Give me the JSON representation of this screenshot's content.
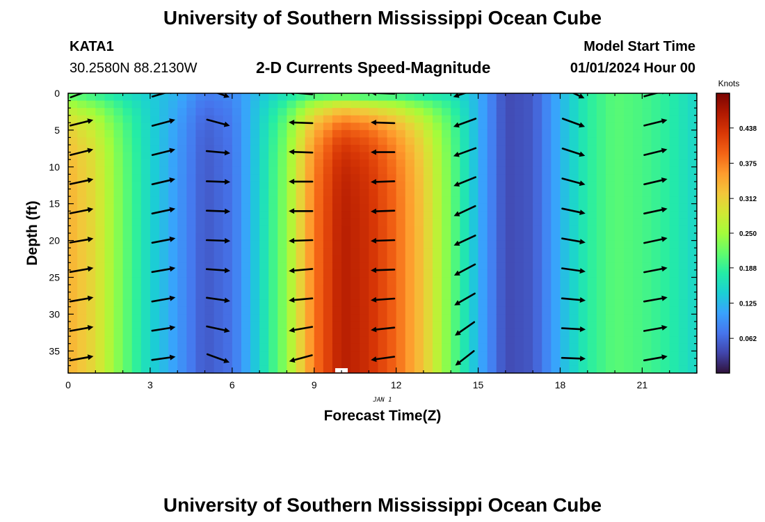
{
  "header": {
    "title": "University of Southern Mississippi Ocean Cube",
    "station": "KATA1",
    "coords": "30.2580N  88.2130W",
    "chart_title": "2-D Currents Speed-Magnitude",
    "model_label": "Model Start Time",
    "model_time": "01/01/2024 Hour 00"
  },
  "footer": {
    "title": "University of Southern Mississippi Ocean Cube"
  },
  "colors": {
    "arrow": "#000000",
    "turbo_stops": [
      "#30123b",
      "#4145ab",
      "#4675ed",
      "#39a2fc",
      "#1bcfd4",
      "#24eca6",
      "#61fc6c",
      "#a4fc3b",
      "#d1e834",
      "#f3c63a",
      "#fe9b2d",
      "#f36315",
      "#d93806",
      "#b11901",
      "#7a0402"
    ]
  },
  "chart_data": {
    "type": "heatmap",
    "title": "2-D Currents Speed-Magnitude",
    "xlabel": "Forecast Time(Z)",
    "ylabel": "Depth (ft)",
    "date_label": "JAN 1",
    "xlim": [
      0,
      23
    ],
    "ylim": [
      0,
      38
    ],
    "x_ticks": [
      0,
      3,
      6,
      9,
      12,
      15,
      18,
      21
    ],
    "y_ticks": [
      0,
      5,
      10,
      15,
      20,
      25,
      30,
      35
    ],
    "colorbar": {
      "label": "Knots",
      "min": 0.0,
      "max": 0.5,
      "ticks": [
        "0.062",
        "0.125",
        "0.188",
        "0.250",
        "0.312",
        "0.375",
        "0.438"
      ],
      "tick_values": [
        0.062,
        0.125,
        0.188,
        0.25,
        0.312,
        0.375,
        0.438
      ]
    },
    "hours": [
      0,
      1,
      2,
      3,
      4,
      5,
      6,
      7,
      8,
      9,
      10,
      11,
      12,
      13,
      14,
      15,
      16,
      17,
      18,
      19,
      20,
      21,
      22,
      23
    ],
    "hourly_speed": [
      0.34,
      0.3,
      0.22,
      0.15,
      0.1,
      0.05,
      0.07,
      0.15,
      0.24,
      0.38,
      0.46,
      0.44,
      0.39,
      0.32,
      0.22,
      0.12,
      0.04,
      0.05,
      0.12,
      0.18,
      0.21,
      0.2,
      0.18,
      0.15
    ],
    "hourly_surface_speed": [
      0.2,
      0.18,
      0.16,
      0.14,
      0.12,
      0.08,
      0.09,
      0.13,
      0.16,
      0.18,
      0.18,
      0.17,
      0.17,
      0.16,
      0.16,
      0.12,
      0.04,
      0.05,
      0.12,
      0.18,
      0.21,
      0.2,
      0.18,
      0.15
    ],
    "arrow_hours": [
      0.5,
      3.5,
      5.5,
      8.5,
      11.5,
      14.5,
      18.5,
      21.5
    ],
    "arrow_depths": [
      0,
      4,
      8,
      12,
      16,
      20,
      24,
      28,
      32,
      36
    ],
    "arrow_angles_deg": [
      [
        20,
        14,
        14,
        12,
        11,
        10,
        10,
        10,
        10,
        10
      ],
      [
        16,
        15,
        14,
        13,
        12,
        11,
        10,
        10,
        9,
        8
      ],
      [
        -20,
        -15,
        -5,
        -2,
        -2,
        -2,
        -4,
        -8,
        -12,
        -20
      ],
      [
        175,
        178,
        178,
        180,
        180,
        182,
        185,
        185,
        190,
        195
      ],
      [
        178,
        178,
        180,
        182,
        182,
        182,
        182,
        184,
        186,
        188
      ],
      [
        198,
        200,
        200,
        202,
        205,
        205,
        208,
        210,
        215,
        218
      ],
      [
        -25,
        -20,
        -18,
        -15,
        -12,
        -10,
        -8,
        -5,
        -3,
        -2
      ],
      [
        15,
        14,
        14,
        13,
        12,
        12,
        11,
        10,
        10,
        10
      ]
    ]
  }
}
